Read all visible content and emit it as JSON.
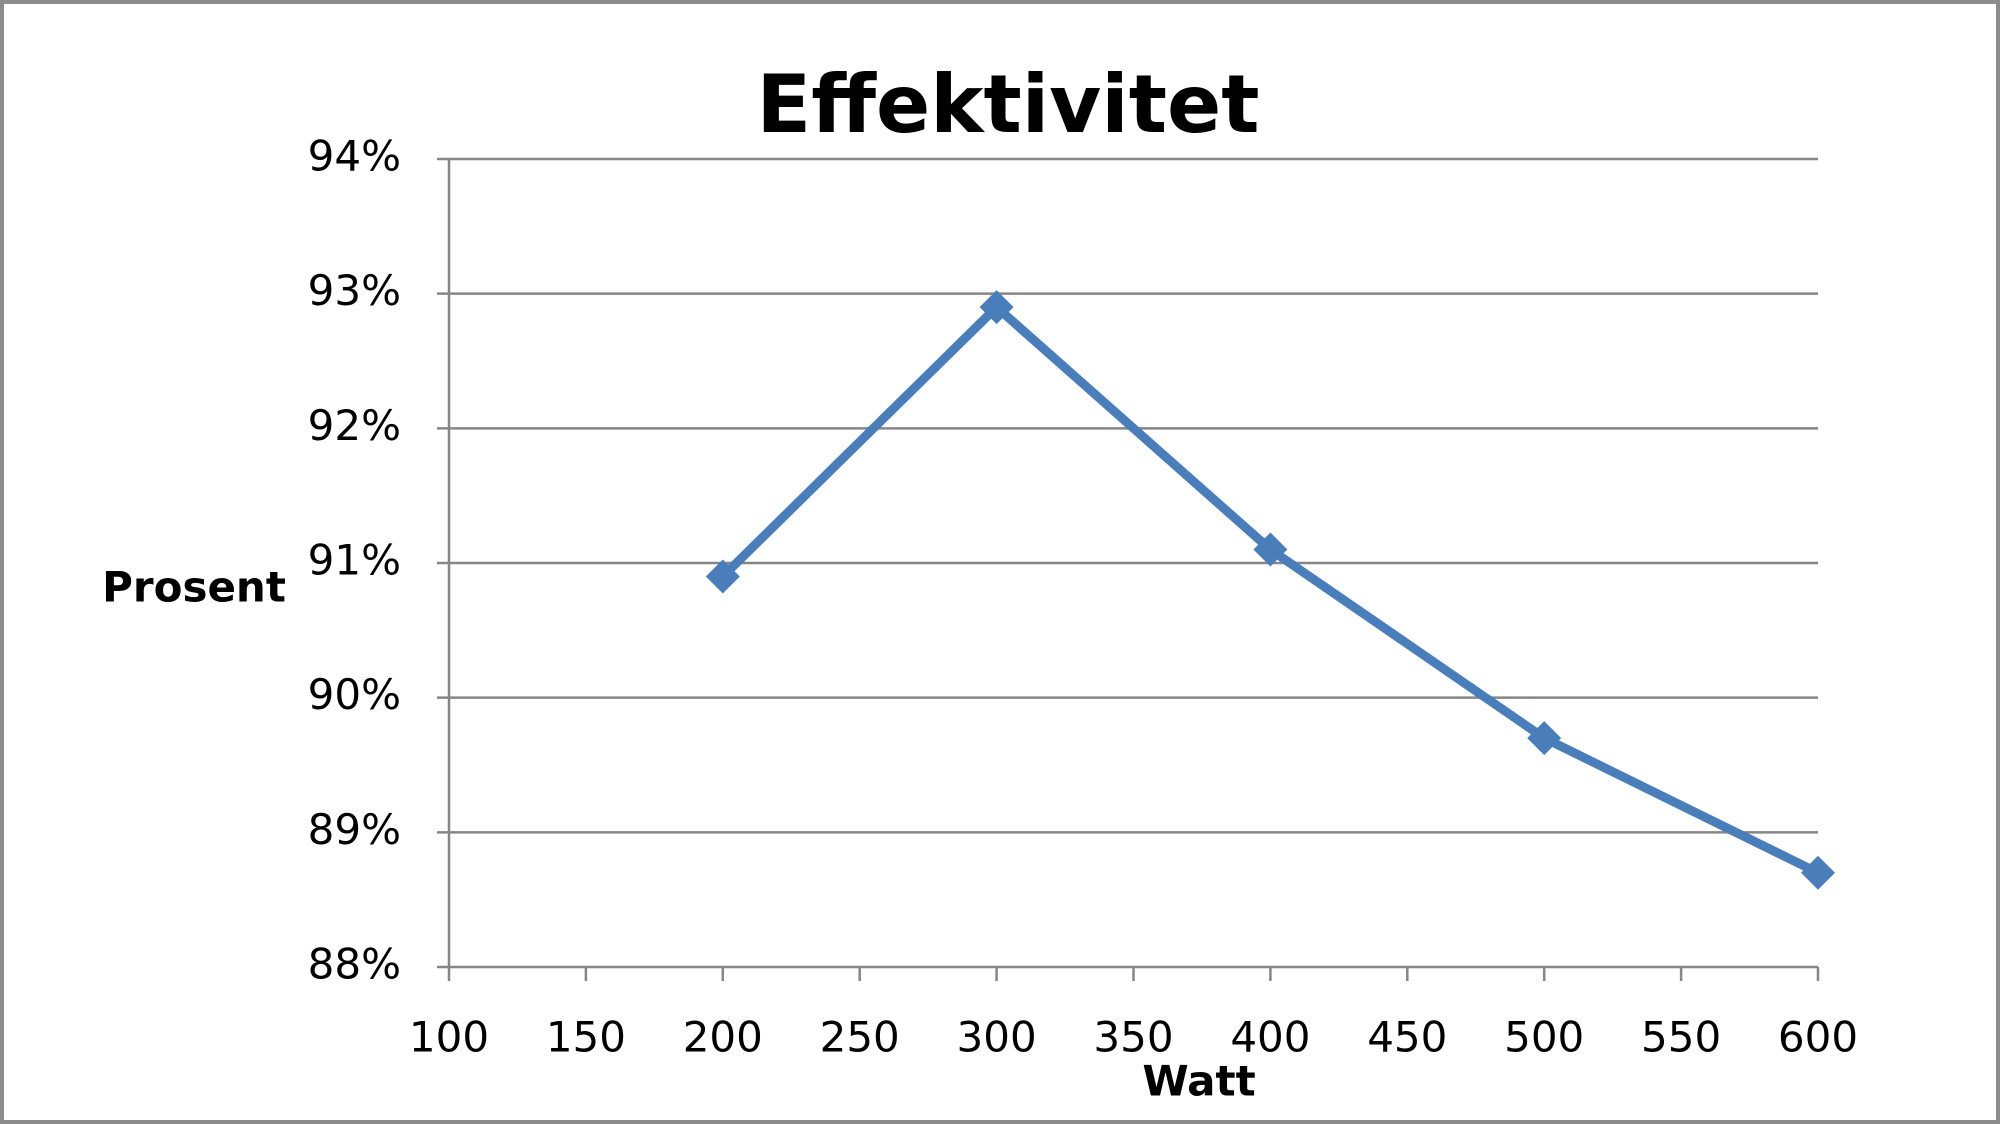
{
  "chart_data": {
    "type": "line",
    "title": "Effektivitet",
    "x_label": "Watt",
    "y_label": "Prosent",
    "x": [
      200,
      300,
      400,
      500,
      600
    ],
    "series": [
      {
        "name": "Effektivitet",
        "color": "#4a7ebb",
        "values": [
          90.9,
          92.9,
          91.1,
          89.7,
          88.7
        ]
      }
    ],
    "xlim": [
      100,
      600
    ],
    "xticks": [
      100,
      150,
      200,
      250,
      300,
      350,
      400,
      450,
      500,
      550,
      600
    ],
    "ylim": [
      88,
      94
    ],
    "yticks": [
      {
        "value": 88,
        "label": "88%"
      },
      {
        "value": 89,
        "label": "89%"
      },
      {
        "value": 90,
        "label": "90%"
      },
      {
        "value": 91,
        "label": "91%"
      },
      {
        "value": 92,
        "label": "92%"
      },
      {
        "value": 93,
        "label": "93%"
      },
      {
        "value": 94,
        "label": "94%"
      }
    ],
    "grid": true,
    "legend": false
  }
}
